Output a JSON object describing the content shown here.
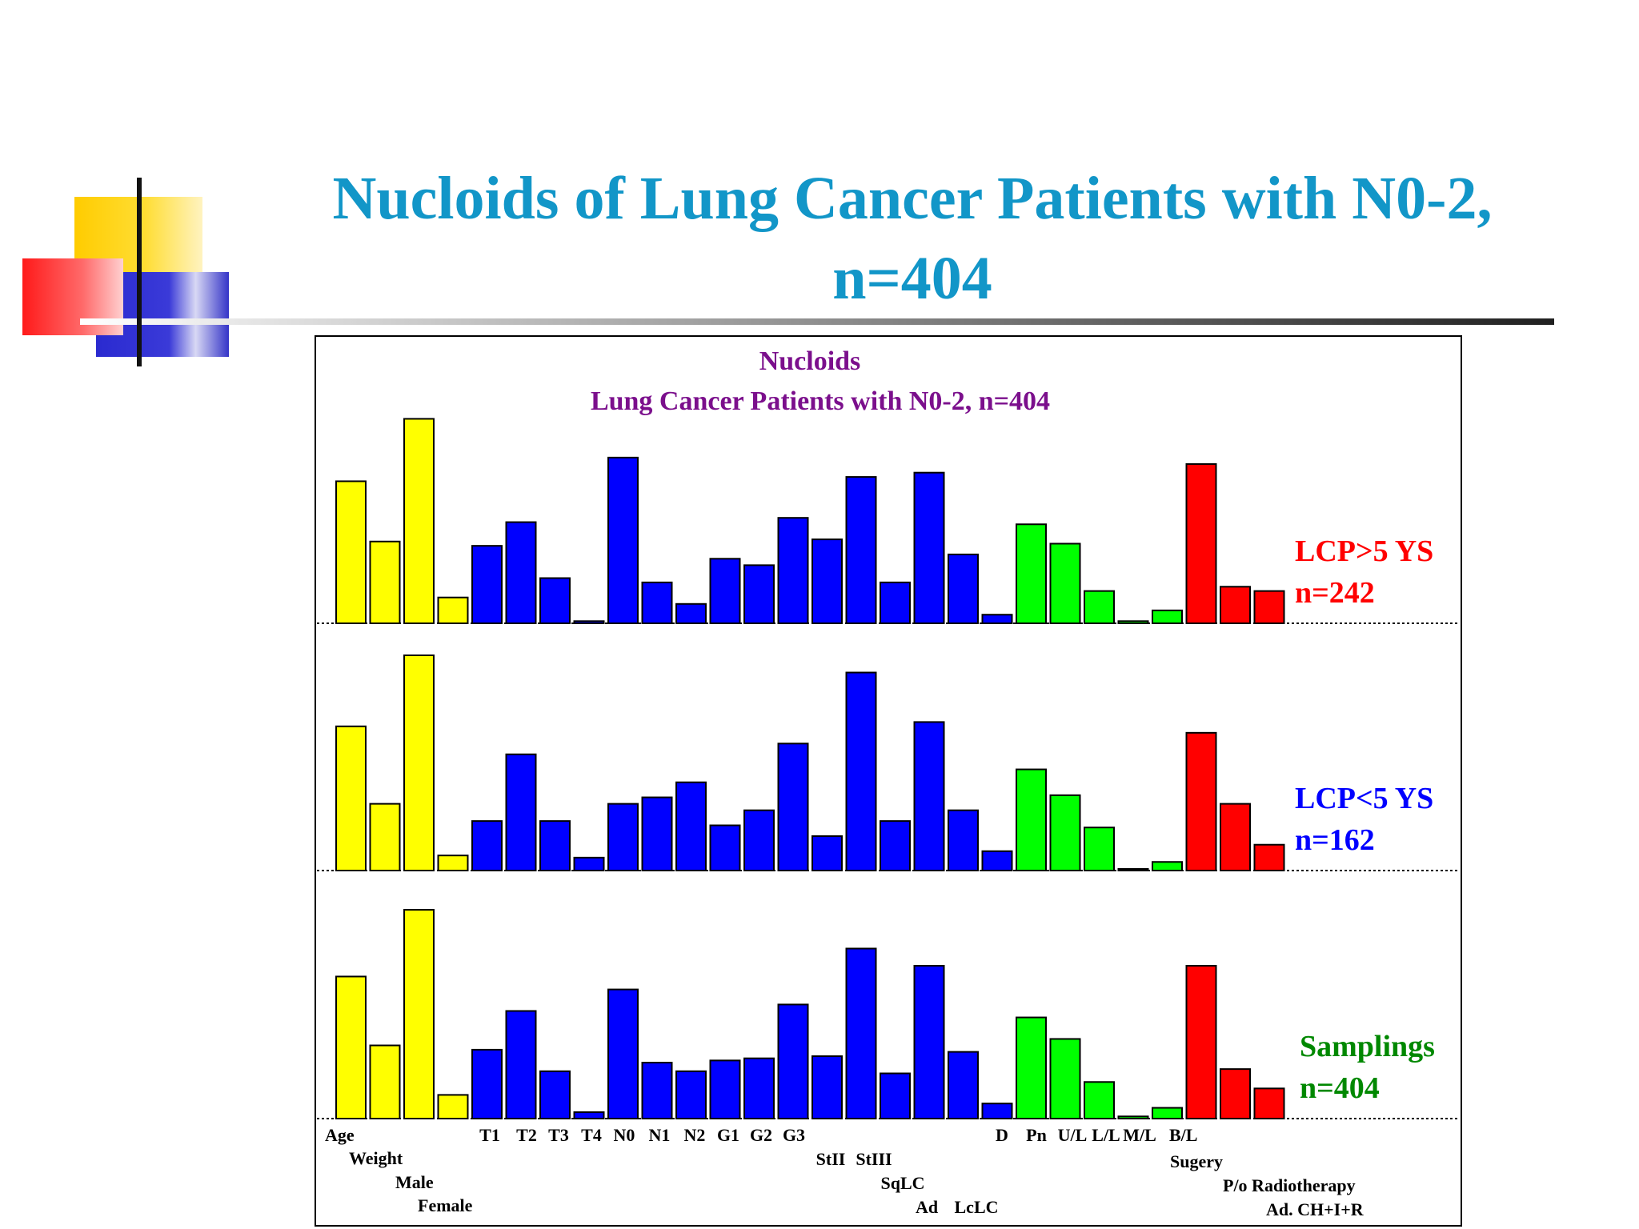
{
  "slide": {
    "title_line1": "Nucloids of Lung Cancer Patients with N0-2,",
    "title_line2": "n=404"
  },
  "colors": {
    "title": "#1296c8",
    "chart_title": "#7b0f8c",
    "yellow": "#ffff00",
    "blue": "#0000ff",
    "green": "#00ff00",
    "red": "#ff0000",
    "label_red": "#ff0000",
    "label_blue": "#0000ff",
    "label_green": "#008800"
  },
  "chart_data": {
    "type": "bar",
    "title": "Nucloids",
    "subtitle": "Lung Cancer Patients with N0-2, n=404",
    "categories": [
      "Age",
      "Weight",
      "Male",
      "Female",
      "T1",
      "T2",
      "T3",
      "T4",
      "N0",
      "N1",
      "N2",
      "G1",
      "G2",
      "G3",
      "StII",
      "StIII",
      "SqLC",
      "Ad",
      "LcLC",
      "D",
      "Pn",
      "U/L",
      "L/L",
      "M/L",
      "B/L",
      "Sugery",
      "P/o Radiotherapy",
      "Ad. CH+I+R"
    ],
    "category_colors": [
      "yellow",
      "yellow",
      "yellow",
      "yellow",
      "blue",
      "blue",
      "blue",
      "blue",
      "blue",
      "blue",
      "blue",
      "blue",
      "blue",
      "blue",
      "blue",
      "blue",
      "blue",
      "blue",
      "blue",
      "blue",
      "green",
      "green",
      "green",
      "green",
      "green",
      "red",
      "red",
      "red"
    ],
    "ylim": [
      0,
      100
    ],
    "grid": false,
    "series": [
      {
        "label_line1": "LCP>5 YS",
        "label_line2": "n=242",
        "label_color": "label_red",
        "values": [
          66,
          38,
          95,
          12,
          36,
          47,
          21,
          1,
          77,
          19,
          9,
          30,
          27,
          49,
          39,
          68,
          19,
          70,
          32,
          4,
          46,
          37,
          15,
          1,
          6,
          74,
          17,
          15
        ]
      },
      {
        "label_line1": "LCP<5 YS",
        "label_line2": "n=162",
        "label_color": "label_blue",
        "values": [
          67,
          31,
          100,
          7,
          23,
          54,
          23,
          6,
          31,
          34,
          41,
          21,
          28,
          59,
          16,
          92,
          23,
          69,
          28,
          9,
          47,
          35,
          20,
          0,
          4,
          64,
          31,
          12
        ]
      },
      {
        "label_line1": "Samplings",
        "label_line2": "n=404",
        "label_color": "label_green",
        "values": [
          66,
          34,
          97,
          11,
          32,
          50,
          22,
          3,
          60,
          26,
          22,
          27,
          28,
          53,
          29,
          79,
          21,
          71,
          31,
          7,
          47,
          37,
          17,
          1,
          5,
          71,
          23,
          14
        ]
      }
    ]
  }
}
